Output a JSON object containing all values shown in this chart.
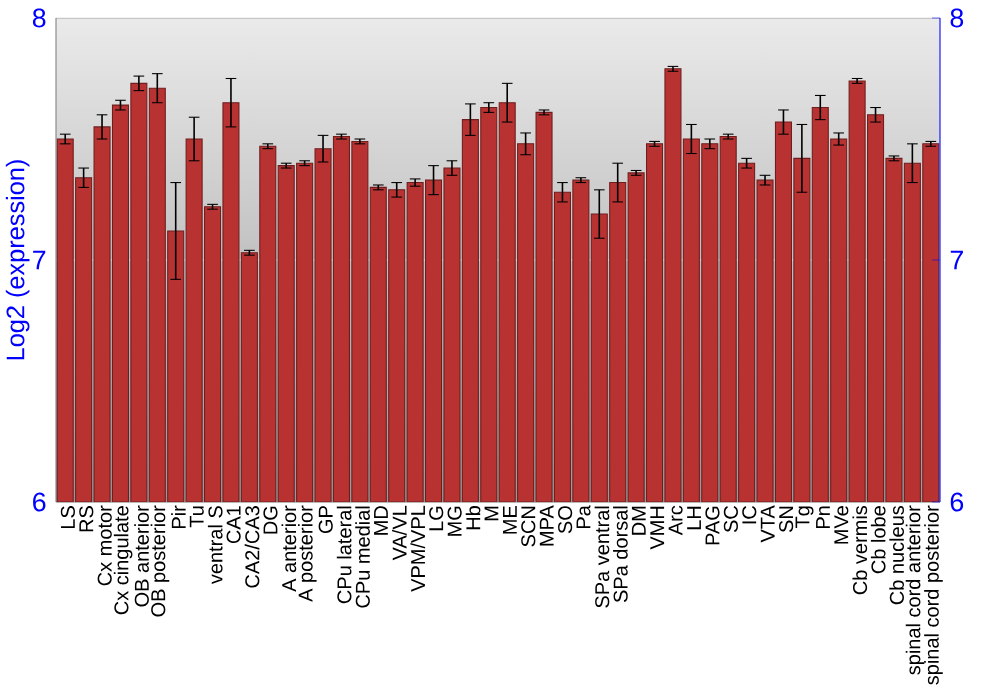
{
  "chart_data": {
    "type": "bar",
    "ylabel": "Log2 (expression)",
    "categories": [
      "LS",
      "RS",
      "Cx motor",
      "Cx cingulate",
      "OB anterior",
      "OB posterior",
      "Pir",
      "Tu",
      "ventral S",
      "CA1",
      "CA2/CA3",
      "DG",
      "A anterior",
      "A posterior",
      "GP",
      "CPu lateral",
      "CPu medial",
      "MD",
      "VA/VL",
      "VPM/VPL",
      "LG",
      "MG",
      "Hb",
      "M",
      "ME",
      "SCN",
      "MPA",
      "SO",
      "Pa",
      "SPa ventral",
      "SPa dorsal",
      "DM",
      "VMH",
      "Arc",
      "LH",
      "PAG",
      "SC",
      "IC",
      "VTA",
      "SN",
      "Tg",
      "Pn",
      "MVe",
      "Cb vermis",
      "Cb lobe",
      "Cb nucleus",
      "spinal cord anterior",
      "spinal cord posterior"
    ],
    "values": [
      7.5,
      7.34,
      7.55,
      7.64,
      7.73,
      7.71,
      7.12,
      7.5,
      7.22,
      7.65,
      7.03,
      7.47,
      7.39,
      7.4,
      7.46,
      7.51,
      7.49,
      7.3,
      7.29,
      7.32,
      7.33,
      7.38,
      7.58,
      7.63,
      7.65,
      7.48,
      7.61,
      7.28,
      7.33,
      7.19,
      7.32,
      7.36,
      7.48,
      7.79,
      7.5,
      7.48,
      7.51,
      7.4,
      7.33,
      7.57,
      7.42,
      7.63,
      7.5,
      7.74,
      7.6,
      7.42,
      7.4,
      7.48
    ],
    "errors": [
      0.02,
      0.04,
      0.05,
      0.02,
      0.03,
      0.06,
      0.2,
      0.09,
      0.01,
      0.1,
      0.01,
      0.01,
      0.01,
      0.01,
      0.055,
      0.01,
      0.01,
      0.01,
      0.03,
      0.015,
      0.06,
      0.03,
      0.065,
      0.02,
      0.08,
      0.045,
      0.01,
      0.04,
      0.01,
      0.1,
      0.08,
      0.01,
      0.01,
      0.01,
      0.06,
      0.02,
      0.01,
      0.02,
      0.02,
      0.05,
      0.14,
      0.05,
      0.025,
      0.01,
      0.03,
      0.01,
      0.08,
      0.01
    ],
    "color": "#b83232",
    "ylim": [
      6,
      8
    ],
    "yticks": [
      6,
      7,
      8
    ],
    "y2lim": [
      6,
      8
    ],
    "y2ticks": [
      6,
      7,
      8
    ],
    "grid": "y"
  }
}
